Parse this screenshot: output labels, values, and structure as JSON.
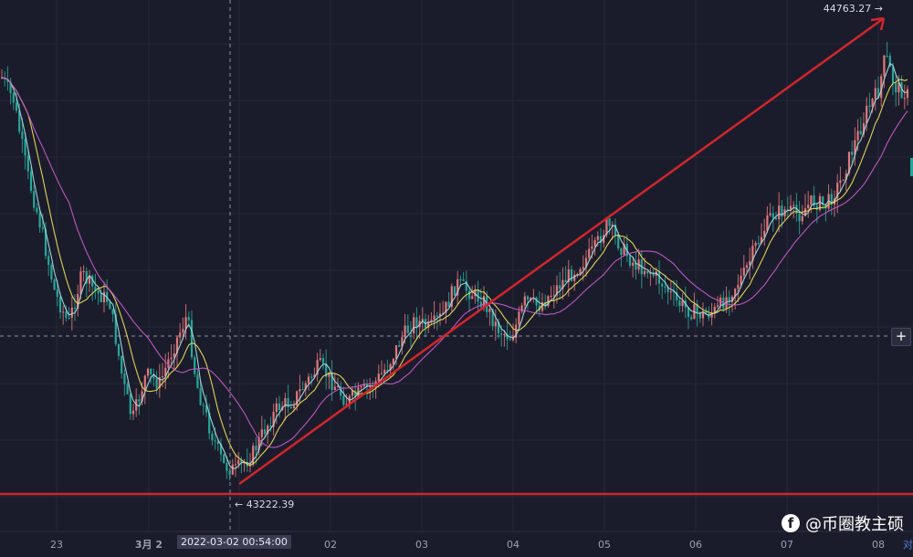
{
  "chart_data": {
    "type": "candlestick",
    "x_tick_labels": [
      "23",
      "3月 2",
      "02",
      "03",
      "04",
      "05",
      "06",
      "07",
      "08"
    ],
    "cursor_time": "2022-03-02 00:54:00",
    "high_marker": "44763.27 →",
    "low_marker": "← 43222.39",
    "high_value": 44763.27,
    "low_value": 43222.39,
    "horizontal_line_value": 43222.39,
    "trend_line": {
      "from_value": 43222.39,
      "to_value": 44763.27
    },
    "moving_averages": [
      {
        "color": "#a8dce0"
      },
      {
        "color": "#e8dc5a"
      },
      {
        "color": "#c45ac8"
      }
    ],
    "colors": {
      "up": "#e0787a",
      "down": "#26a69a",
      "annotation": "#d0262c",
      "background": "#1b1c2b"
    }
  },
  "watermark": {
    "icon": "facebook-icon",
    "text": "@币圈教主硕"
  },
  "controls": {
    "plus_label": "+",
    "corner_text": "对"
  }
}
